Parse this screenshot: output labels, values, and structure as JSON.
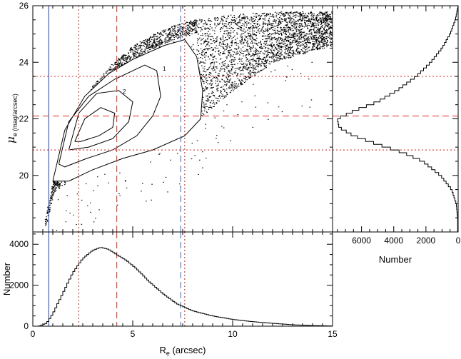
{
  "chart_data": [
    {
      "type": "scatter",
      "panel": "main",
      "xlim": [
        0,
        15
      ],
      "ylim": [
        18,
        26
      ],
      "ylabel_symbol": "μ",
      "ylabel_sub": "e (mag/arcsec)",
      "x_ticks": [
        0,
        5,
        10,
        15
      ],
      "y_ticks": [
        20,
        22,
        24,
        26
      ],
      "y_tick_labels": [
        "20",
        "22",
        "24",
        "26"
      ],
      "contour_labels": [
        "2",
        "1"
      ],
      "scatter_envelope": {
        "lower_edge": [
          [
            0.6,
            18.0
          ],
          [
            1.0,
            19.4
          ],
          [
            2,
            19.9
          ],
          [
            3,
            20.3
          ],
          [
            4,
            20.6
          ],
          [
            5,
            20.85
          ],
          [
            6,
            21.1
          ],
          [
            7,
            21.4
          ],
          [
            8,
            21.85
          ],
          [
            9,
            22.4
          ],
          [
            10,
            23.0
          ],
          [
            12,
            24.0
          ],
          [
            15,
            24.6
          ]
        ],
        "upper_edge": [
          [
            0.6,
            18.5
          ],
          [
            1,
            19.8
          ],
          [
            2,
            22.0
          ],
          [
            3,
            23.2
          ],
          [
            4,
            24.0
          ],
          [
            5,
            24.6
          ],
          [
            6,
            25.0
          ],
          [
            7,
            25.3
          ],
          [
            8,
            25.5
          ],
          [
            10,
            25.7
          ],
          [
            12,
            25.8
          ],
          [
            15,
            25.8
          ]
        ]
      },
      "contours": [
        [
          [
            1.0,
            19.8
          ],
          [
            1.6,
            21.6
          ],
          [
            2.6,
            22.8
          ],
          [
            3.8,
            23.6
          ],
          [
            5.0,
            24.1
          ],
          [
            6.6,
            24.6
          ],
          [
            7.6,
            24.8
          ],
          [
            8.2,
            24.2
          ],
          [
            8.5,
            23.0
          ],
          [
            8.4,
            22.0
          ],
          [
            7.6,
            21.4
          ],
          [
            6.0,
            20.9
          ],
          [
            4.5,
            20.6
          ],
          [
            3.0,
            20.2
          ],
          [
            1.8,
            19.8
          ],
          [
            1.0,
            19.8
          ]
        ],
        [
          [
            1.3,
            20.4
          ],
          [
            1.8,
            21.9
          ],
          [
            2.8,
            22.8
          ],
          [
            4.1,
            23.4
          ],
          [
            5.6,
            23.9
          ],
          [
            6.2,
            23.7
          ],
          [
            6.4,
            22.8
          ],
          [
            6.0,
            22.1
          ],
          [
            5.2,
            21.4
          ],
          [
            4.0,
            20.9
          ],
          [
            2.7,
            20.6
          ],
          [
            1.6,
            20.3
          ],
          [
            1.3,
            20.4
          ]
        ],
        [
          [
            1.8,
            20.9
          ],
          [
            2.3,
            22.2
          ],
          [
            3.2,
            22.9
          ],
          [
            4.3,
            23.0
          ],
          [
            5.0,
            22.6
          ],
          [
            4.8,
            21.9
          ],
          [
            4.0,
            21.3
          ],
          [
            2.8,
            21.0
          ],
          [
            1.8,
            20.9
          ]
        ],
        [
          [
            2.1,
            21.2
          ],
          [
            2.6,
            22.0
          ],
          [
            3.4,
            22.4
          ],
          [
            4.1,
            22.2
          ],
          [
            4.0,
            21.7
          ],
          [
            3.3,
            21.4
          ],
          [
            2.4,
            21.2
          ],
          [
            2.1,
            21.2
          ]
        ]
      ],
      "vlines": [
        {
          "x": 0.8,
          "color": "#3b5bd6",
          "style": "solid"
        },
        {
          "x": 2.3,
          "color": "#e0453a",
          "style": "dotted"
        },
        {
          "x": 4.2,
          "color": "#e0453a",
          "style": "dashed"
        },
        {
          "x": 7.4,
          "color": "#5a7fd8",
          "style": "dashed"
        },
        {
          "x": 7.6,
          "color": "#e0453a",
          "style": "dotted"
        }
      ],
      "hlines": [
        {
          "y": 20.9,
          "color": "#e0453a",
          "style": "dotted"
        },
        {
          "y": 22.1,
          "color": "#e0453a",
          "style": "dashed"
        },
        {
          "y": 23.5,
          "color": "#e0453a",
          "style": "dotted"
        }
      ]
    },
    {
      "type": "histogram",
      "panel": "bottom",
      "xlabel_symbol": "R",
      "xlabel_sub": "e",
      "xlabel_unit": " (arcsec)",
      "ylabel": "Number",
      "xlim": [
        0,
        15
      ],
      "ylim": [
        0,
        4600
      ],
      "x_ticks": [
        0,
        5,
        10,
        15
      ],
      "x_tick_labels": [
        "0",
        "5",
        "10",
        "15"
      ],
      "y_ticks": [
        0,
        2000,
        4000
      ],
      "y_tick_labels": [
        "0",
        "2000",
        "4000"
      ],
      "curve": [
        [
          0.3,
          0
        ],
        [
          0.7,
          150
        ],
        [
          1.0,
          600
        ],
        [
          1.5,
          1600
        ],
        [
          2.0,
          2600
        ],
        [
          2.5,
          3300
        ],
        [
          3.0,
          3700
        ],
        [
          3.4,
          3850
        ],
        [
          3.8,
          3750
        ],
        [
          4.2,
          3500
        ],
        [
          4.7,
          3200
        ],
        [
          5.2,
          2800
        ],
        [
          5.8,
          2200
        ],
        [
          6.5,
          1600
        ],
        [
          7.2,
          1100
        ],
        [
          8.0,
          750
        ],
        [
          9.0,
          500
        ],
        [
          10.0,
          330
        ],
        [
          11.0,
          220
        ],
        [
          12.0,
          140
        ],
        [
          13.0,
          70
        ],
        [
          14.0,
          30
        ],
        [
          15.0,
          10
        ]
      ],
      "vlines": [
        {
          "x": 0.8,
          "color": "#3b5bd6",
          "style": "solid"
        },
        {
          "x": 2.3,
          "color": "#e0453a",
          "style": "dotted"
        },
        {
          "x": 4.2,
          "color": "#e0453a",
          "style": "dashed"
        },
        {
          "x": 7.4,
          "color": "#5a7fd8",
          "style": "dashed"
        },
        {
          "x": 7.6,
          "color": "#e0453a",
          "style": "dotted"
        }
      ]
    },
    {
      "type": "histogram",
      "panel": "right",
      "orientation": "horizontal",
      "xlabel": "Number",
      "xlim": [
        7800,
        0
      ],
      "ylim": [
        18,
        26
      ],
      "x_ticks": [
        6000,
        4000,
        2000,
        0
      ],
      "x_tick_labels": [
        "6000",
        "4000",
        "2000",
        "0"
      ],
      "curve": [
        [
          18.5,
          30
        ],
        [
          19.0,
          120
        ],
        [
          19.5,
          400
        ],
        [
          20.0,
          1100
        ],
        [
          20.5,
          2200
        ],
        [
          20.8,
          3400
        ],
        [
          21.1,
          5000
        ],
        [
          21.4,
          6500
        ],
        [
          21.7,
          7400
        ],
        [
          22.0,
          7500
        ],
        [
          22.3,
          6400
        ],
        [
          22.6,
          5000
        ],
        [
          23.0,
          3800
        ],
        [
          23.5,
          2600
        ],
        [
          24.0,
          1700
        ],
        [
          24.5,
          1000
        ],
        [
          25.0,
          500
        ],
        [
          25.5,
          170
        ],
        [
          26.0,
          0
        ]
      ],
      "hlines": [
        {
          "y": 20.9,
          "color": "#e0453a",
          "style": "dotted"
        },
        {
          "y": 22.1,
          "color": "#e0453a",
          "style": "dashed"
        },
        {
          "y": 23.5,
          "color": "#e0453a",
          "style": "dotted"
        }
      ]
    }
  ]
}
